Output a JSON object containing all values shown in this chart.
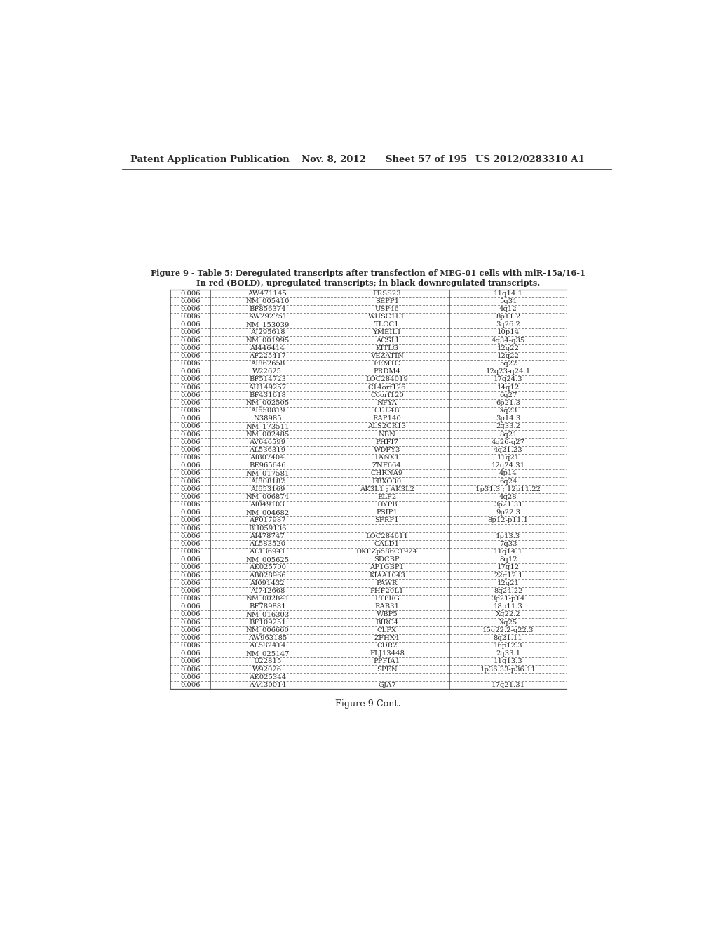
{
  "header_line1": "Figure 9 - Table 5: Deregulated transcripts after transfection of MEG-01 cells with miR-15a/16-1",
  "header_line2": "In red (BOLD), upregulated transcripts; in black downregulated transcripts.",
  "patent_header": "Patent Application Publication",
  "patent_date": "Nov. 8, 2012",
  "patent_sheet": "Sheet 57 of 195",
  "patent_number": "US 2012/0283310 A1",
  "figure_caption": "Figure 9 Cont.",
  "rows": [
    [
      "0.006",
      "AW471145",
      "PRSS23",
      "11q14.1"
    ],
    [
      "0.006",
      "NM_005410",
      "SEPP1",
      "5q31"
    ],
    [
      "0.006",
      "BF856374",
      "USP46",
      "4q12"
    ],
    [
      "0.006",
      "AW292751",
      "WHSC1L1",
      "8p11.2"
    ],
    [
      "0.006",
      "NM_153039",
      "TLOC1",
      "3q26.2"
    ],
    [
      "0.006",
      "AJ295618",
      "YMEIL1",
      "10p14"
    ],
    [
      "0.006",
      "NM_001995",
      "ACSLI",
      "4q34-q35"
    ],
    [
      "0.006",
      "AI446414",
      "KITLG",
      "12q22"
    ],
    [
      "0.006",
      "AF225417",
      "VEZATIN",
      "12q22"
    ],
    [
      "0.006",
      "AI862658",
      "FEM1C",
      "5q22"
    ],
    [
      "0.006",
      "W22625",
      "PRDM4",
      "12q23-q24.1"
    ],
    [
      "0.006",
      "BF514723",
      "LOC284019",
      "17q24.3"
    ],
    [
      "0.006",
      "AU149257",
      "C14orf126",
      "14q12"
    ],
    [
      "0.006",
      "BF431618",
      "C6orf120",
      "6q27"
    ],
    [
      "0.006",
      "NM_002505",
      "NFYA",
      "6p21.3"
    ],
    [
      "0.006",
      "AI650819",
      "CUL4B",
      "Xq23"
    ],
    [
      "0.006",
      "N38985",
      "RAP140",
      "3p14.3"
    ],
    [
      "0.006",
      "NM_173511",
      "ALS2CR13",
      "2q33.2"
    ],
    [
      "0.006",
      "NM_002485",
      "NBN",
      "8q21"
    ],
    [
      "0.006",
      "AV646599",
      "PHFI7",
      "4q26-q27"
    ],
    [
      "0.006",
      "AL536319",
      "WDFY3",
      "4q21.23"
    ],
    [
      "0.006",
      "AI807404",
      "PANX1",
      "11q21"
    ],
    [
      "0.006",
      "BE965646",
      "ZNF664",
      "12q24.31"
    ],
    [
      "0.006",
      "NM_017581",
      "CHRNA9",
      "4p14"
    ],
    [
      "0.006",
      "AI808182",
      "FBXO30",
      "6q24"
    ],
    [
      "0.006",
      "AI653169",
      "AK3L1 ; AK3L2",
      "1p31.3 ; 12p11.22"
    ],
    [
      "0.006",
      "NM_006874",
      "ELF2",
      "4q28"
    ],
    [
      "0.006",
      "AI049103",
      "HYPB",
      "3p21.31"
    ],
    [
      "0.006",
      "NM_004682",
      "PSIP1",
      "9p22.3"
    ],
    [
      "0.006",
      "AF017987",
      "SFRP1",
      "8p12-p11.1"
    ],
    [
      "0.006",
      "BH059136",
      "",
      ""
    ],
    [
      "0.006",
      "AI478747",
      "LOC284611",
      "1p13.3"
    ],
    [
      "0.006",
      "AL583520",
      "CALD1",
      "7q33"
    ],
    [
      "0.006",
      "AL136941",
      "DKFZp586C1924",
      "11q14.1"
    ],
    [
      "0.006",
      "NM_005625",
      "SDCBP",
      "8q12"
    ],
    [
      "0.006",
      "AK025700",
      "AP1GBP1",
      "17q12"
    ],
    [
      "0.006",
      "AB028966",
      "KIAA1043",
      "22q12.1"
    ],
    [
      "0.006",
      "AI091432",
      "PAWR",
      "12q21"
    ],
    [
      "0.006",
      "AI742668",
      "PHF20L1",
      "8q24.22"
    ],
    [
      "0.006",
      "NM_002841",
      "PTPRG",
      "3p21-p14"
    ],
    [
      "0.006",
      "BF789881",
      "RAB31",
      "18p11.3"
    ],
    [
      "0.006",
      "NM_016303",
      "WBP5",
      "Xq22.2"
    ],
    [
      "0.006",
      "BF109251",
      "BIRC4",
      "Xq25"
    ],
    [
      "0.006",
      "NM_006660",
      "CLPX",
      "15q22.2-q22.3"
    ],
    [
      "0.006",
      "AW963185",
      "ZFHX4",
      "8q21.11"
    ],
    [
      "0.006",
      "AL582414",
      "CDR2",
      "16p12.3"
    ],
    [
      "0.006",
      "NM_025147",
      "FLJ13448",
      "2q33.1"
    ],
    [
      "0.006",
      "U22815",
      "PPFIA1",
      "11q13.3"
    ],
    [
      "0.006",
      "W92026",
      "SPEN",
      "1p36.33-p36.11"
    ],
    [
      "0.006",
      "AK025344",
      "",
      ""
    ],
    [
      "0.006",
      "AA430014",
      "GJA7",
      "17q21.31"
    ]
  ],
  "bg_color": "#ffffff",
  "text_color": "#2a2a2a",
  "border_color": "#555555",
  "font_size": 7.2,
  "header_fontsize": 8.2,
  "patent_fontsize": 9.5
}
